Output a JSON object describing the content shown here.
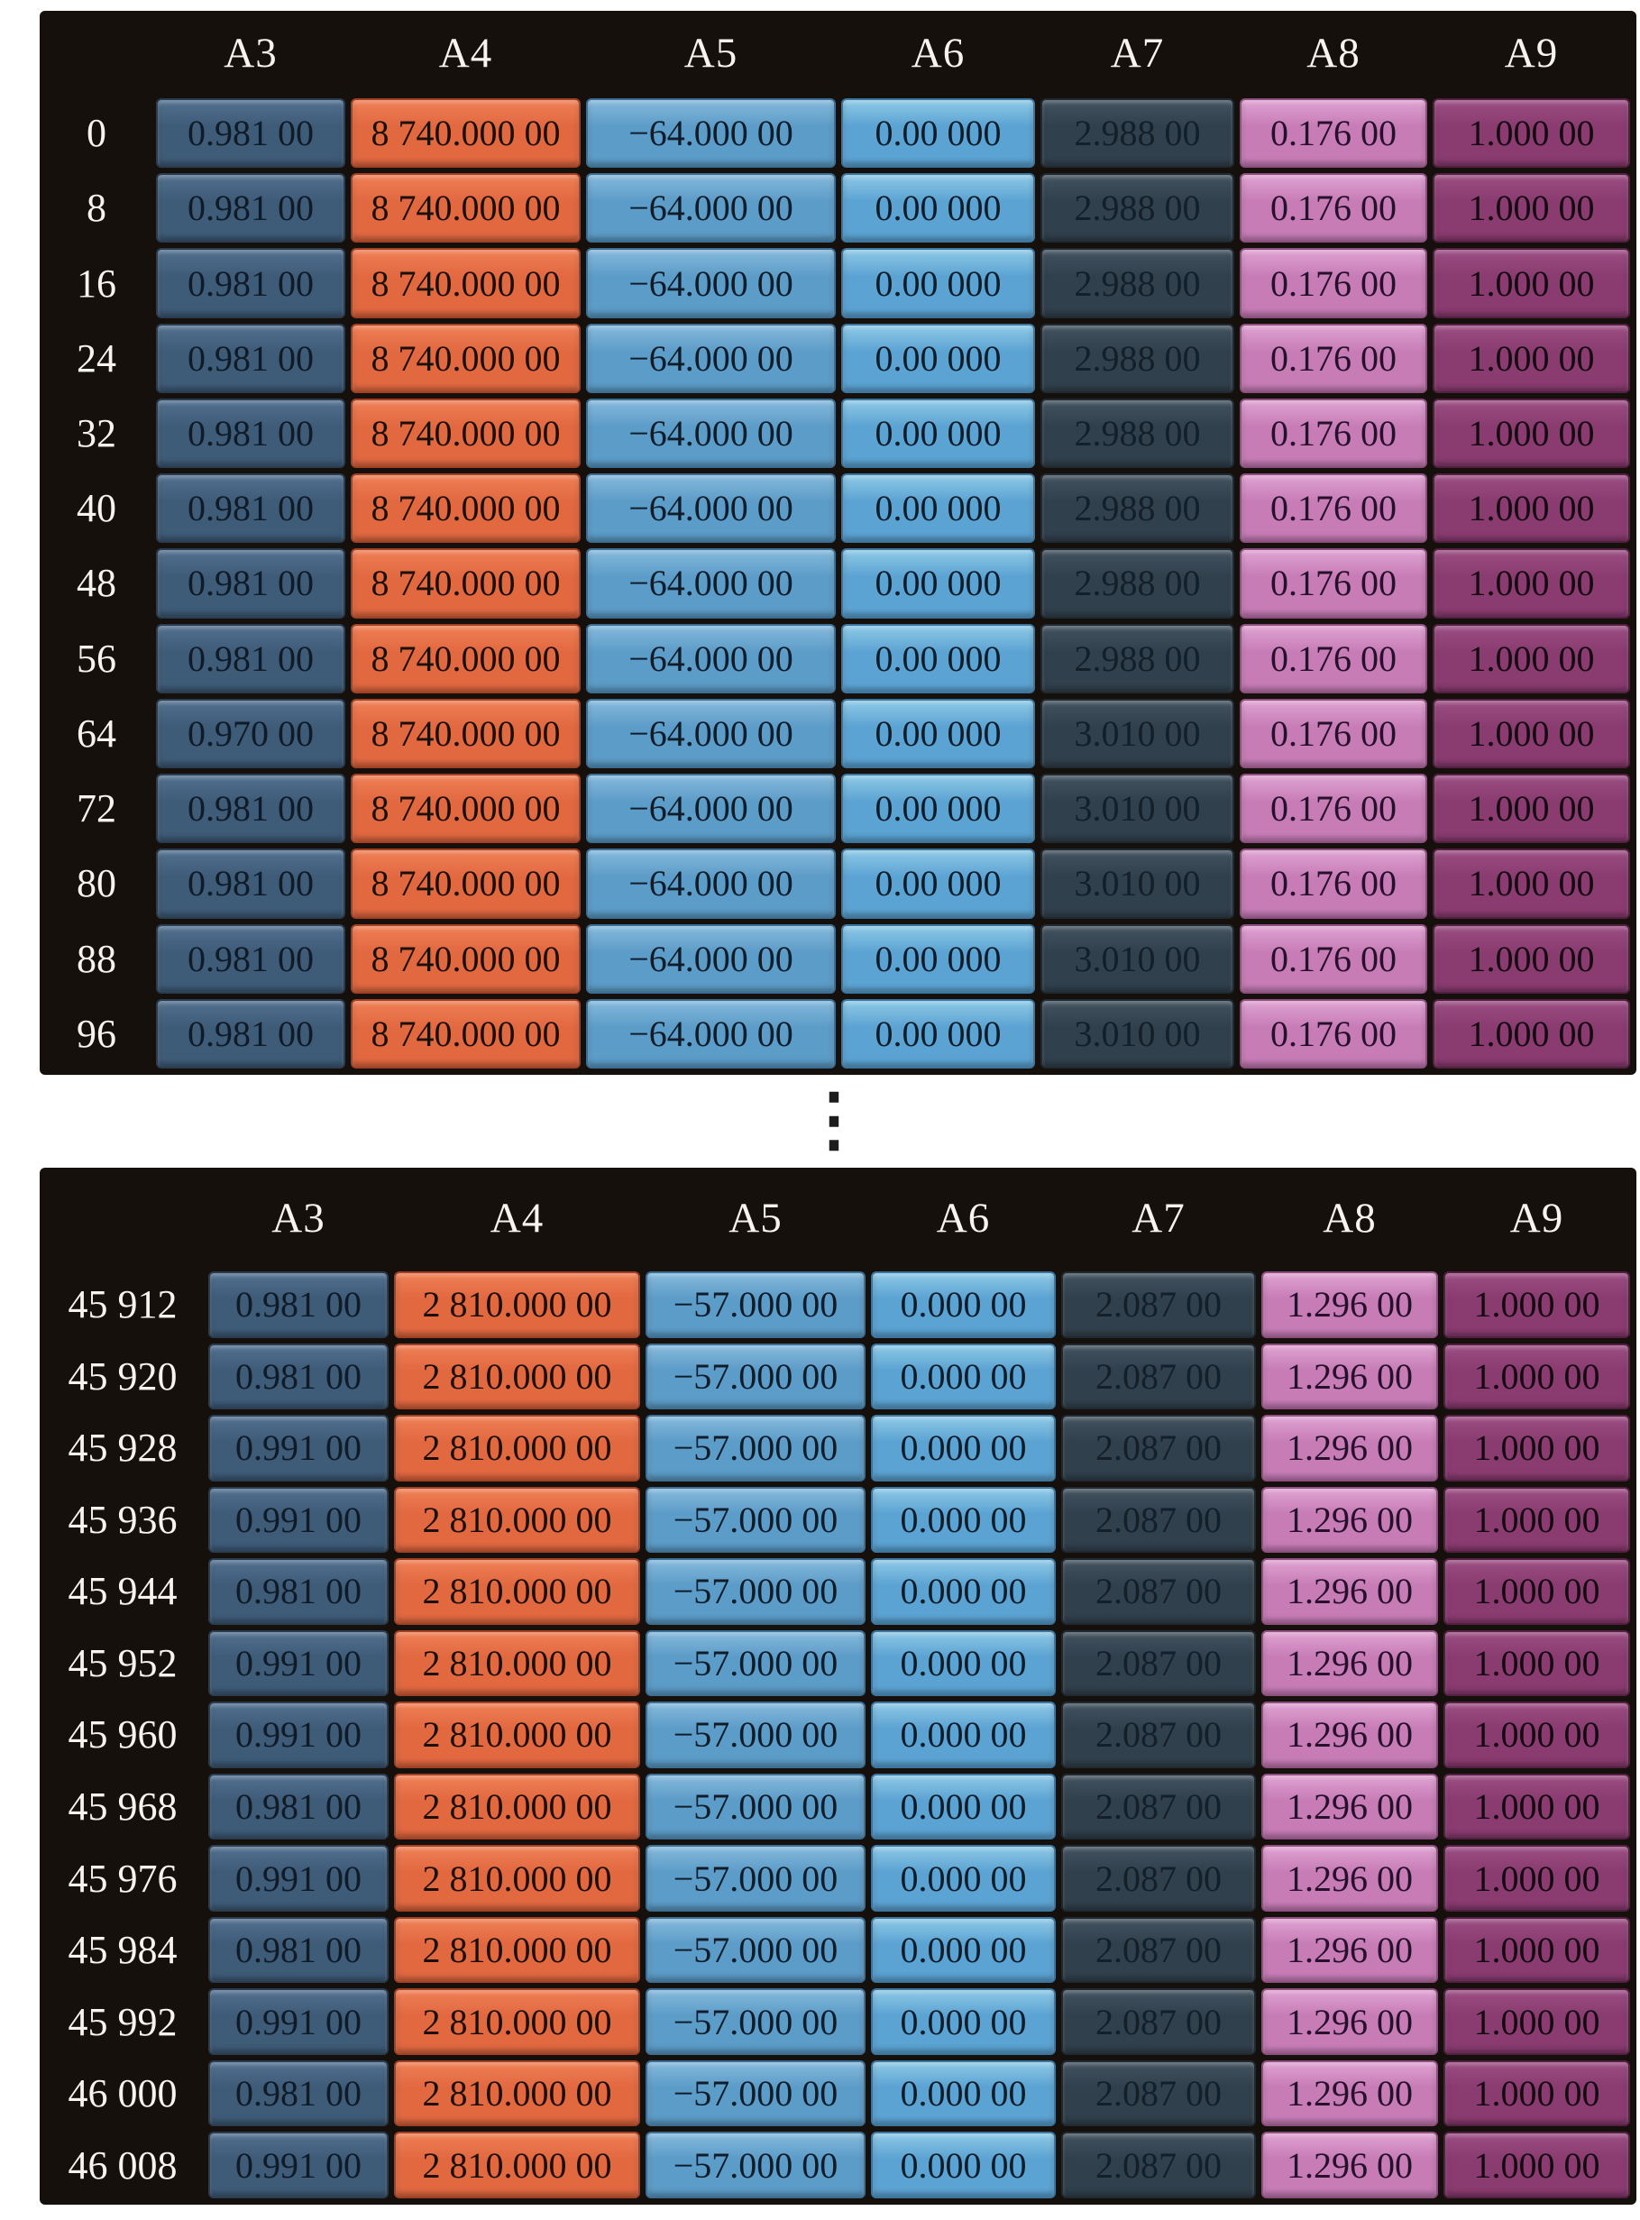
{
  "ellipsis_glyph": "⋮",
  "colors": {
    "panel_bg": "#16100c",
    "header_text": "#f7f4f0",
    "ellipsis": "#1c1c1c",
    "columns": {
      "A3": {
        "light": "#52708f",
        "base": "#3e5b78",
        "border": "#2a3c50",
        "text": "#0f1b27"
      },
      "A4": {
        "light": "#ef7f55",
        "base": "#e26840",
        "border": "#a33f22",
        "text": "#1c0f08"
      },
      "A5": {
        "light": "#85b9dc",
        "base": "#5c9cc8",
        "border": "#3b6e94",
        "text": "#0f1d2a"
      },
      "A6": {
        "light": "#8ec9e6",
        "base": "#5ba3d3",
        "border": "#3a76a0",
        "text": "#0f1d2a"
      },
      "A7": {
        "light": "#42525f",
        "base": "#31404d",
        "border": "#1e2932",
        "text": "#131f29"
      },
      "A8": {
        "light": "#dfa3d2",
        "base": "#c77cb6",
        "border": "#8f4e80",
        "text": "#26102b"
      },
      "A9": {
        "light": "#9b4e83",
        "base": "#8a3b70",
        "border": "#551f44",
        "text": "#150a12"
      }
    }
  },
  "chart_data": [
    {
      "type": "table",
      "title": "data records, rows 0 to 96",
      "columns": [
        "A3",
        "A4",
        "A5",
        "A6",
        "A7",
        "A8",
        "A9"
      ],
      "row_labels": [
        "0",
        "8",
        "16",
        "24",
        "32",
        "40",
        "48",
        "56",
        "64",
        "72",
        "80",
        "88",
        "96"
      ],
      "rows": [
        [
          "0.981 00",
          "8 740.000 00",
          "−64.000 00",
          "0.00 000",
          "2.988 00",
          "0.176 00",
          "1.000 00"
        ],
        [
          "0.981 00",
          "8 740.000 00",
          "−64.000 00",
          "0.00 000",
          "2.988 00",
          "0.176 00",
          "1.000 00"
        ],
        [
          "0.981 00",
          "8 740.000 00",
          "−64.000 00",
          "0.00 000",
          "2.988 00",
          "0.176 00",
          "1.000 00"
        ],
        [
          "0.981 00",
          "8 740.000 00",
          "−64.000 00",
          "0.00 000",
          "2.988 00",
          "0.176 00",
          "1.000 00"
        ],
        [
          "0.981 00",
          "8 740.000 00",
          "−64.000 00",
          "0.00 000",
          "2.988 00",
          "0.176 00",
          "1.000 00"
        ],
        [
          "0.981 00",
          "8 740.000 00",
          "−64.000 00",
          "0.00 000",
          "2.988 00",
          "0.176 00",
          "1.000 00"
        ],
        [
          "0.981 00",
          "8 740.000 00",
          "−64.000 00",
          "0.00 000",
          "2.988 00",
          "0.176 00",
          "1.000 00"
        ],
        [
          "0.981 00",
          "8 740.000 00",
          "−64.000 00",
          "0.00 000",
          "2.988 00",
          "0.176 00",
          "1.000 00"
        ],
        [
          "0.970 00",
          "8 740.000 00",
          "−64.000 00",
          "0.00 000",
          "3.010 00",
          "0.176 00",
          "1.000 00"
        ],
        [
          "0.981 00",
          "8 740.000 00",
          "−64.000 00",
          "0.00 000",
          "3.010 00",
          "0.176 00",
          "1.000 00"
        ],
        [
          "0.981 00",
          "8 740.000 00",
          "−64.000 00",
          "0.00 000",
          "3.010 00",
          "0.176 00",
          "1.000 00"
        ],
        [
          "0.981 00",
          "8 740.000 00",
          "−64.000 00",
          "0.00 000",
          "3.010 00",
          "0.176 00",
          "1.000 00"
        ],
        [
          "0.981 00",
          "8 740.000 00",
          "−64.000 00",
          "0.00 000",
          "3.010 00",
          "0.176 00",
          "1.000 00"
        ]
      ]
    },
    {
      "type": "table",
      "title": "data records, rows 45 912 to 46 008",
      "columns": [
        "A3",
        "A4",
        "A5",
        "A6",
        "A7",
        "A8",
        "A9"
      ],
      "row_labels": [
        "45 912",
        "45 920",
        "45 928",
        "45 936",
        "45 944",
        "45 952",
        "45 960",
        "45 968",
        "45 976",
        "45 984",
        "45 992",
        "46 000",
        "46 008"
      ],
      "rows": [
        [
          "0.981 00",
          "2 810.000 00",
          "−57.000 00",
          "0.000 00",
          "2.087 00",
          "1.296 00",
          "1.000 00"
        ],
        [
          "0.981 00",
          "2 810.000 00",
          "−57.000 00",
          "0.000 00",
          "2.087 00",
          "1.296 00",
          "1.000 00"
        ],
        [
          "0.991 00",
          "2 810.000 00",
          "−57.000 00",
          "0.000 00",
          "2.087 00",
          "1.296 00",
          "1.000 00"
        ],
        [
          "0.991 00",
          "2 810.000 00",
          "−57.000 00",
          "0.000 00",
          "2.087 00",
          "1.296 00",
          "1.000 00"
        ],
        [
          "0.981 00",
          "2 810.000 00",
          "−57.000 00",
          "0.000 00",
          "2.087 00",
          "1.296 00",
          "1.000 00"
        ],
        [
          "0.991 00",
          "2 810.000 00",
          "−57.000 00",
          "0.000 00",
          "2.087 00",
          "1.296 00",
          "1.000 00"
        ],
        [
          "0.991 00",
          "2 810.000 00",
          "−57.000 00",
          "0.000 00",
          "2.087 00",
          "1.296 00",
          "1.000 00"
        ],
        [
          "0.981 00",
          "2 810.000 00",
          "−57.000 00",
          "0.000 00",
          "2.087 00",
          "1.296 00",
          "1.000 00"
        ],
        [
          "0.991 00",
          "2 810.000 00",
          "−57.000 00",
          "0.000 00",
          "2.087 00",
          "1.296 00",
          "1.000 00"
        ],
        [
          "0.981 00",
          "2 810.000 00",
          "−57.000 00",
          "0.000 00",
          "2.087 00",
          "1.296 00",
          "1.000 00"
        ],
        [
          "0.991 00",
          "2 810.000 00",
          "−57.000 00",
          "0.000 00",
          "2.087 00",
          "1.296 00",
          "1.000 00"
        ],
        [
          "0.981 00",
          "2 810.000 00",
          "−57.000 00",
          "0.000 00",
          "2.087 00",
          "1.296 00",
          "1.000 00"
        ],
        [
          "0.991 00",
          "2 810.000 00",
          "−57.000 00",
          "0.000 00",
          "2.087 00",
          "1.296 00",
          "1.000 00"
        ]
      ]
    }
  ]
}
